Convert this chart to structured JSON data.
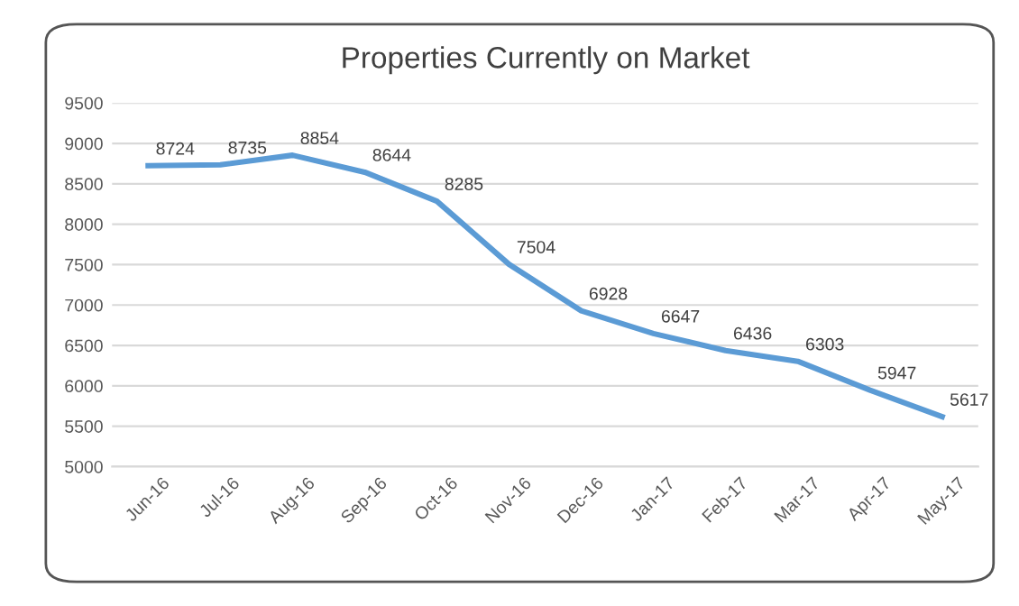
{
  "chart_data": {
    "type": "line",
    "title": "Properties Currently on Market",
    "categories": [
      "Jun-16",
      "Jul-16",
      "Aug-16",
      "Sep-16",
      "Oct-16",
      "Nov-16",
      "Dec-16",
      "Jan-17",
      "Feb-17",
      "Mar-17",
      "Apr-17",
      "May-17"
    ],
    "series": [
      {
        "color": "#5b9bd5",
        "values": [
          8724,
          8735,
          8854,
          8644,
          8285,
          7504,
          6928,
          6647,
          6436,
          6303,
          5947,
          5617
        ]
      }
    ],
    "ylim": [
      5000,
      9500
    ],
    "yticks": [
      5000,
      5500,
      6000,
      6500,
      7000,
      7500,
      8000,
      8500,
      9000,
      9500
    ],
    "grid": "y",
    "data_labels": true,
    "marker": "none",
    "line_style": "solid",
    "legend": false
  }
}
